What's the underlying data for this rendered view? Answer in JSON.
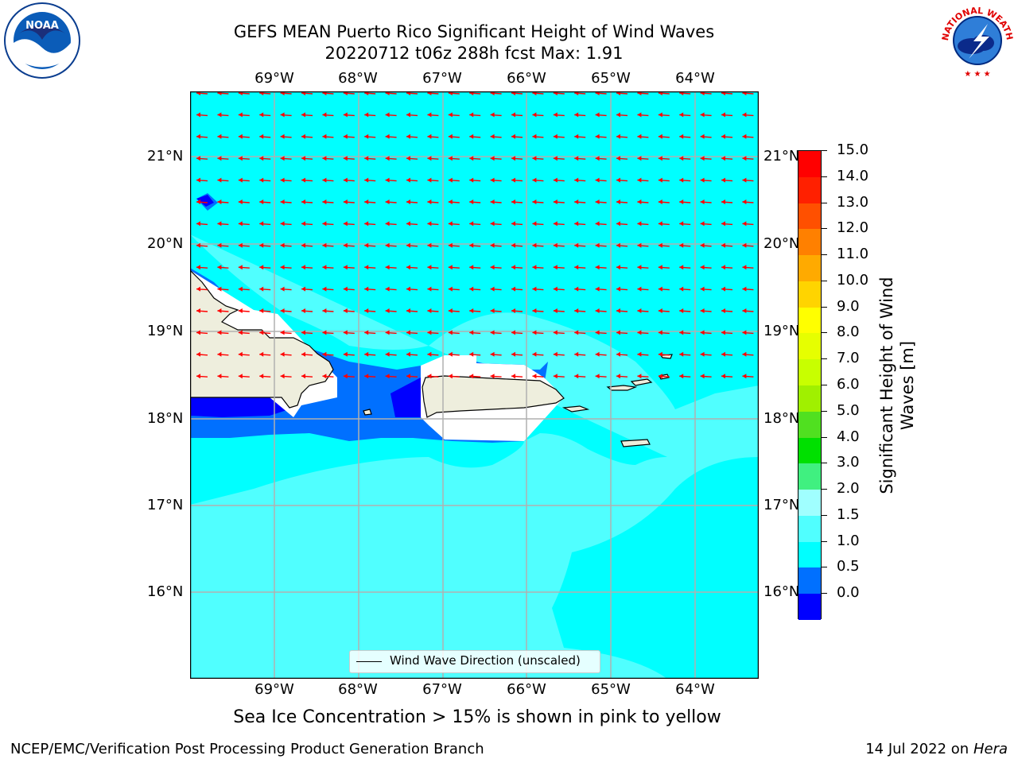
{
  "header": {
    "title_line1": "GEFS MEAN Puerto Rico Significant Height of Wind Waves",
    "title_line2": "20220712 t06z 288h fcst   Max: 1.91"
  },
  "map": {
    "lon_labels": [
      "69°W",
      "68°W",
      "67°W",
      "66°W",
      "65°W",
      "64°W"
    ],
    "lat_labels": [
      "21°N",
      "20°N",
      "19°N",
      "18°N",
      "17°N",
      "16°N"
    ],
    "legend_label": "Wind Wave Direction (unscaled)",
    "background_color": "#00ffff",
    "land_color": "#eeeedd",
    "arrow_color": "#ff0000",
    "max_value": 1.91
  },
  "colorbar": {
    "ticks": [
      "15.0",
      "14.0",
      "13.0",
      "12.0",
      "11.0",
      "10.0",
      "9.0",
      "8.0",
      "7.0",
      "6.0",
      "5.0",
      "4.0",
      "3.0",
      "2.0",
      "1.5",
      "1.0",
      "0.5",
      "0.0"
    ],
    "colors": [
      "#ff0000",
      "#ff2000",
      "#ff5000",
      "#ff8000",
      "#ffaa00",
      "#ffd400",
      "#ffff00",
      "#e6ff00",
      "#c8ff00",
      "#a0f000",
      "#50e020",
      "#00e000",
      "#40f080",
      "#a0ffff",
      "#50ffff",
      "#00ffff",
      "#0070ff",
      "#0000ff"
    ],
    "label": "Significant Height of Wind Waves [m]"
  },
  "caption": "Sea Ice Concentration > 15% is shown in pink to yellow",
  "footer": {
    "left": "NCEP/EMC/Verification Post Processing Product Generation Branch",
    "right_prefix": "14 Jul 2022 on ",
    "right_machine": "Hera"
  },
  "logos": {
    "noaa_text": "NOAA",
    "nws_text": "NATIONAL WEATHER SERVICE"
  }
}
